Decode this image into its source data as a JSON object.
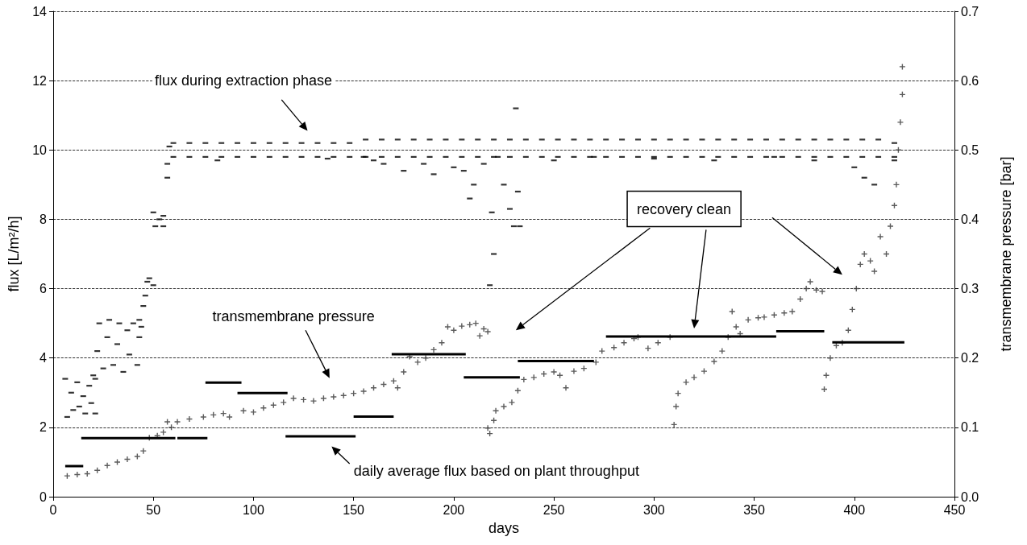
{
  "chart_data": {
    "type": "scatter",
    "xlabel": "days",
    "ylabel": "flux [L/m²/h]",
    "y2label": "transmembrane pressure [bar]",
    "xlim": [
      0,
      450
    ],
    "xticks": [
      0,
      50,
      100,
      150,
      200,
      250,
      300,
      350,
      400,
      450
    ],
    "ylim": [
      0,
      14
    ],
    "yticks": [
      0,
      2,
      4,
      6,
      8,
      10,
      12,
      14
    ],
    "y2lim": [
      0,
      0.7
    ],
    "y2ticks": [
      {
        "value": 0,
        "label": "0.0"
      },
      0.1,
      0.2,
      0.3,
      0.4,
      0.5,
      0.6,
      0.7
    ],
    "grid": "y",
    "annotations": [
      "flux during extraction phase",
      "transmembrane pressure",
      "daily average flux based on plant throughput",
      "recovery clean"
    ],
    "series": [
      {
        "color": "#000000",
        "x": [
          6,
          7,
          9,
          10,
          12,
          13,
          15,
          16,
          18,
          19,
          21,
          21,
          20,
          22,
          23,
          25,
          27,
          28,
          30,
          32,
          33,
          35,
          37,
          38,
          40,
          42,
          43,
          43,
          44,
          45,
          46,
          47,
          48,
          50,
          50,
          51,
          53,
          55,
          55,
          57,
          57,
          58,
          60,
          60,
          68,
          68,
          76,
          76,
          84,
          84,
          92,
          92,
          100,
          100,
          108,
          108,
          116,
          116,
          124,
          124,
          132,
          132,
          140,
          140,
          148,
          148,
          156,
          156,
          164,
          164,
          172,
          172,
          180,
          180,
          188,
          188,
          196,
          196,
          204,
          204,
          212,
          212,
          220,
          220,
          228,
          228,
          236,
          236,
          244,
          244,
          252,
          252,
          260,
          260,
          268,
          268,
          276,
          276,
          284,
          284,
          292,
          292,
          300,
          300,
          308,
          308,
          316,
          316,
          324,
          324,
          332,
          332,
          340,
          340,
          348,
          348,
          356,
          356,
          364,
          364,
          372,
          372,
          380,
          380,
          388,
          388,
          396,
          396,
          404,
          404,
          412,
          412,
          420,
          420,
          82,
          137,
          155,
          160,
          165,
          175,
          185,
          190,
          200,
          205,
          208,
          210,
          215,
          218,
          219,
          220,
          222,
          225,
          228,
          230,
          231,
          232,
          233,
          250,
          270,
          300,
          330,
          360,
          380,
          400,
          405,
          410,
          420
        ],
        "values": [
          3.4,
          2.3,
          3.0,
          2.5,
          3.3,
          2.6,
          2.9,
          2.4,
          3.2,
          2.7,
          3.4,
          2.4,
          3.5,
          4.2,
          5.0,
          3.7,
          4.6,
          5.1,
          3.8,
          4.4,
          5.0,
          3.6,
          4.8,
          4.1,
          5.0,
          3.8,
          4.6,
          5.1,
          4.9,
          5.5,
          5.8,
          6.2,
          6.3,
          6.1,
          8.2,
          7.8,
          8.0,
          7.8,
          8.1,
          9.2,
          9.6,
          10.1,
          9.8,
          10.2,
          9.8,
          10.2,
          9.8,
          10.2,
          9.8,
          10.2,
          9.8,
          10.2,
          9.8,
          10.2,
          9.8,
          10.2,
          9.8,
          10.2,
          9.8,
          10.2,
          9.8,
          10.2,
          9.8,
          10.2,
          9.8,
          10.2,
          9.8,
          10.3,
          9.8,
          10.3,
          9.8,
          10.3,
          9.8,
          10.3,
          9.8,
          10.3,
          9.8,
          10.3,
          9.8,
          10.3,
          9.8,
          10.3,
          9.8,
          10.3,
          9.8,
          10.3,
          9.8,
          10.3,
          9.8,
          10.3,
          9.8,
          10.3,
          9.8,
          10.3,
          9.8,
          10.3,
          9.8,
          10.3,
          9.8,
          10.3,
          9.8,
          10.3,
          9.8,
          10.3,
          9.8,
          10.3,
          9.8,
          10.3,
          9.8,
          10.3,
          9.8,
          10.3,
          9.8,
          10.3,
          9.8,
          10.3,
          9.8,
          10.3,
          9.8,
          10.3,
          9.8,
          10.3,
          9.8,
          10.3,
          9.8,
          10.3,
          9.8,
          10.3,
          9.8,
          10.3,
          9.8,
          10.3,
          9.8,
          10.2,
          9.7,
          9.75,
          9.8,
          9.7,
          9.6,
          9.4,
          9.6,
          9.3,
          9.5,
          9.4,
          8.6,
          9.0,
          9.6,
          6.1,
          8.2,
          7.0,
          9.8,
          9.0,
          8.3,
          7.8,
          11.2,
          8.8,
          7.8,
          9.7,
          9.8,
          9.75,
          9.7,
          9.8,
          9.7,
          9.5,
          9.2,
          9.0,
          9.7
        ]
      },
      {
        "axis": "y2",
        "color": "#333333",
        "marker": "cross",
        "x": [
          7,
          12,
          17,
          22,
          27,
          32,
          37,
          42,
          45,
          48,
          52,
          55,
          57,
          59,
          62,
          68,
          75,
          80,
          85,
          88,
          95,
          100,
          105,
          110,
          115,
          120,
          125,
          130,
          135,
          140,
          145,
          150,
          155,
          160,
          165,
          170,
          172,
          175,
          178,
          182,
          186,
          190,
          194,
          197,
          200,
          204,
          208,
          211,
          213,
          215,
          217,
          217,
          218,
          220,
          221,
          225,
          229,
          232,
          235,
          240,
          245,
          250,
          253,
          256,
          260,
          265,
          271,
          274,
          280,
          285,
          290,
          292,
          297,
          302,
          308,
          310,
          311,
          312,
          316,
          320,
          325,
          330,
          334,
          337,
          339,
          341,
          343,
          347,
          352,
          355,
          360,
          365,
          369,
          373,
          376,
          378,
          381,
          384,
          385,
          386,
          388,
          391,
          394,
          397,
          399,
          401,
          403,
          405,
          408,
          410,
          413,
          416,
          418,
          420,
          421,
          422,
          423,
          424,
          424
        ],
        "values": [
          0.03,
          0.032,
          0.033,
          0.038,
          0.045,
          0.05,
          0.054,
          0.058,
          0.066,
          0.085,
          0.088,
          0.093,
          0.108,
          0.1,
          0.108,
          0.112,
          0.115,
          0.118,
          0.12,
          0.115,
          0.124,
          0.122,
          0.128,
          0.132,
          0.136,
          0.142,
          0.14,
          0.138,
          0.142,
          0.144,
          0.146,
          0.149,
          0.152,
          0.157,
          0.162,
          0.167,
          0.157,
          0.18,
          0.202,
          0.194,
          0.2,
          0.212,
          0.222,
          0.245,
          0.24,
          0.246,
          0.248,
          0.25,
          0.232,
          0.242,
          0.238,
          0.099,
          0.091,
          0.11,
          0.124,
          0.13,
          0.136,
          0.153,
          0.169,
          0.172,
          0.177,
          0.18,
          0.175,
          0.157,
          0.181,
          0.185,
          0.194,
          0.21,
          0.215,
          0.222,
          0.228,
          0.23,
          0.214,
          0.222,
          0.23,
          0.104,
          0.13,
          0.149,
          0.165,
          0.172,
          0.181,
          0.195,
          0.21,
          0.23,
          0.267,
          0.245,
          0.235,
          0.255,
          0.258,
          0.259,
          0.262,
          0.265,
          0.267,
          0.285,
          0.3,
          0.31,
          0.298,
          0.296,
          0.155,
          0.175,
          0.2,
          0.218,
          0.222,
          0.24,
          0.27,
          0.3,
          0.335,
          0.35,
          0.34,
          0.325,
          0.375,
          0.35,
          0.39,
          0.42,
          0.45,
          0.5,
          0.54,
          0.58,
          0.62
        ]
      },
      {
        "type": "line",
        "color": "#000000",
        "marker": "none",
        "line_style": "solid",
        "x": [
          6,
          15
        ],
        "values": [
          0.88,
          0.88
        ]
      },
      {
        "type": "line",
        "color": "#000000",
        "marker": "none",
        "line_style": "solid",
        "x": [
          14,
          61
        ],
        "values": [
          1.69,
          1.69
        ]
      },
      {
        "type": "line",
        "color": "#000000",
        "marker": "none",
        "line_style": "solid",
        "x": [
          62,
          77
        ],
        "values": [
          1.69,
          1.69
        ]
      },
      {
        "type": "line",
        "color": "#000000",
        "marker": "none",
        "line_style": "solid",
        "x": [
          76,
          94
        ],
        "values": [
          3.29,
          3.29
        ]
      },
      {
        "type": "line",
        "color": "#000000",
        "marker": "none",
        "line_style": "solid",
        "x": [
          92,
          117
        ],
        "values": [
          2.99,
          2.99
        ]
      },
      {
        "type": "line",
        "color": "#000000",
        "marker": "none",
        "line_style": "solid",
        "x": [
          116,
          151
        ],
        "values": [
          1.74,
          1.74
        ]
      },
      {
        "type": "line",
        "color": "#000000",
        "marker": "none",
        "line_style": "solid",
        "x": [
          150,
          170
        ],
        "values": [
          2.31,
          2.31
        ]
      },
      {
        "type": "line",
        "color": "#000000",
        "marker": "none",
        "line_style": "solid",
        "x": [
          169,
          206
        ],
        "values": [
          4.11,
          4.11
        ]
      },
      {
        "type": "line",
        "color": "#000000",
        "marker": "none",
        "line_style": "solid",
        "x": [
          205,
          233
        ],
        "values": [
          3.44,
          3.44
        ]
      },
      {
        "type": "line",
        "color": "#000000",
        "marker": "none",
        "line_style": "solid",
        "x": [
          232,
          270
        ],
        "values": [
          3.91,
          3.91
        ]
      },
      {
        "type": "line",
        "color": "#000000",
        "marker": "none",
        "line_style": "solid",
        "x": [
          276,
          361
        ],
        "values": [
          4.62,
          4.62
        ]
      },
      {
        "type": "line",
        "color": "#000000",
        "marker": "none",
        "line_style": "solid",
        "x": [
          361,
          385
        ],
        "values": [
          4.77,
          4.77
        ]
      },
      {
        "type": "line",
        "color": "#000000",
        "marker": "none",
        "line_style": "solid",
        "x": [
          389,
          425
        ],
        "values": [
          4.45,
          4.45
        ]
      }
    ]
  }
}
